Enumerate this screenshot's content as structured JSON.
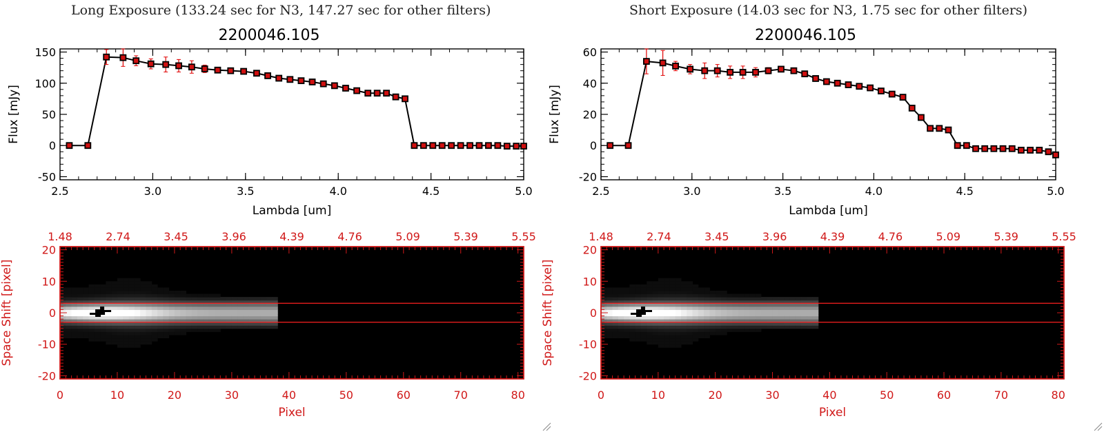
{
  "panels": {
    "left": {
      "title": "Long Exposure (133.24 sec for N3, 147.27 sec for other filters)"
    },
    "right": {
      "title": "Short Exposure (14.03 sec for N3, 1.75 sec for other filters)"
    }
  },
  "colors": {
    "axis": "#000000",
    "errorbar": "#e00000",
    "marker_fill": "#d01010",
    "spatial_axis": "#d01818",
    "extraction_lines": "#ff2020"
  },
  "chart_data": [
    {
      "type": "line",
      "title": "2200046.105",
      "xlabel": "Lambda [um]",
      "ylabel": "Flux [mJy]",
      "xlim": [
        2.5,
        5.0
      ],
      "ylim": [
        -55,
        155
      ],
      "x_ticks": [
        "2.5",
        "3.0",
        "3.5",
        "4.0",
        "4.5",
        "5.0"
      ],
      "y_ticks": [
        "-50",
        "0",
        "50",
        "100",
        "150"
      ],
      "series": [
        {
          "x": [
            2.55,
            2.65,
            2.75,
            2.84,
            2.91,
            2.99,
            3.07,
            3.14,
            3.21,
            3.28,
            3.35,
            3.42,
            3.49,
            3.56,
            3.62,
            3.68,
            3.74,
            3.8,
            3.86,
            3.92,
            3.98,
            4.04,
            4.1,
            4.16,
            4.21,
            4.26,
            4.31,
            4.36,
            4.41,
            4.46,
            4.51,
            4.56,
            4.61,
            4.66,
            4.71,
            4.76,
            4.81,
            4.86,
            4.91,
            4.96,
            5.0
          ],
          "y": [
            0,
            0,
            142,
            141,
            136,
            131,
            130,
            128,
            126,
            123,
            121,
            120,
            119,
            116,
            112,
            108,
            106,
            104,
            102,
            99,
            96,
            92,
            88,
            84,
            84,
            84,
            78,
            75,
            0,
            0,
            0,
            0,
            0,
            0,
            0,
            0,
            0,
            0,
            -1,
            -1,
            -1
          ],
          "err": [
            0,
            0,
            12,
            14,
            8,
            8,
            12,
            10,
            10,
            6,
            3,
            2,
            2,
            2,
            2,
            2,
            2,
            2,
            2,
            2,
            2,
            2,
            2,
            2,
            2,
            2,
            2,
            2,
            1,
            1,
            1,
            1,
            1,
            1,
            1,
            1,
            1,
            1,
            1,
            1,
            1
          ]
        }
      ]
    },
    {
      "type": "heatmap",
      "xlabel": "Pixel",
      "ylabel": "Space Shift [pixel]",
      "xlim": [
        0,
        81
      ],
      "ylim": [
        -21,
        21
      ],
      "x_ticks": [
        "0",
        "10",
        "20",
        "30",
        "40",
        "50",
        "60",
        "70",
        "80"
      ],
      "y_ticks": [
        "-20",
        "-10",
        "0",
        "10",
        "20"
      ],
      "top_ticks": [
        "1.48",
        "2.74",
        "3.45",
        "3.96",
        "4.39",
        "4.76",
        "5.09",
        "5.39",
        "5.55"
      ],
      "signal_extent": [
        0,
        38
      ],
      "extraction_rows": [
        -3,
        3
      ]
    },
    {
      "type": "line",
      "title": "2200046.105",
      "xlabel": "Lambda [um]",
      "ylabel": "Flux [mJy]",
      "xlim": [
        2.5,
        5.0
      ],
      "ylim": [
        -22,
        62
      ],
      "x_ticks": [
        "2.5",
        "3.0",
        "3.5",
        "4.0",
        "4.5",
        "5.0"
      ],
      "y_ticks": [
        "-20",
        "0",
        "20",
        "40",
        "60"
      ],
      "series": [
        {
          "x": [
            2.55,
            2.65,
            2.75,
            2.84,
            2.91,
            2.99,
            3.07,
            3.14,
            3.21,
            3.28,
            3.35,
            3.42,
            3.49,
            3.56,
            3.62,
            3.68,
            3.74,
            3.8,
            3.86,
            3.92,
            3.98,
            4.04,
            4.1,
            4.16,
            4.21,
            4.26,
            4.31,
            4.36,
            4.41,
            4.46,
            4.51,
            4.56,
            4.61,
            4.66,
            4.71,
            4.76,
            4.81,
            4.86,
            4.91,
            4.96,
            5.0
          ],
          "y": [
            0,
            0,
            54,
            53,
            51,
            49,
            48,
            48,
            47,
            47,
            47,
            48,
            49,
            48,
            46,
            43,
            41,
            40,
            39,
            38,
            37,
            35,
            33,
            31,
            24,
            18,
            11,
            11,
            10,
            0,
            0,
            -2,
            -2,
            -2,
            -2,
            -2,
            -3,
            -3,
            -3,
            -4,
            -6
          ],
          "err": [
            0,
            0,
            8,
            8,
            3,
            3,
            5,
            4,
            4,
            4,
            3,
            2,
            1,
            1,
            1,
            1,
            1,
            1,
            1,
            1,
            1,
            1,
            1,
            1,
            1,
            1,
            1,
            1,
            1,
            1,
            1,
            1,
            1,
            1,
            1,
            1,
            1,
            1,
            1,
            1,
            1
          ]
        }
      ]
    },
    {
      "type": "heatmap",
      "xlabel": "Pixel",
      "ylabel": "Space Shift [pixel]",
      "xlim": [
        0,
        81
      ],
      "ylim": [
        -21,
        21
      ],
      "x_ticks": [
        "0",
        "10",
        "20",
        "30",
        "40",
        "50",
        "60",
        "70",
        "80"
      ],
      "y_ticks": [
        "-20",
        "-10",
        "0",
        "10",
        "20"
      ],
      "top_ticks": [
        "1.48",
        "2.74",
        "3.45",
        "3.96",
        "4.39",
        "4.76",
        "5.09",
        "5.39",
        "5.55"
      ],
      "signal_extent": [
        0,
        38
      ],
      "extraction_rows": [
        -3,
        3
      ]
    }
  ]
}
